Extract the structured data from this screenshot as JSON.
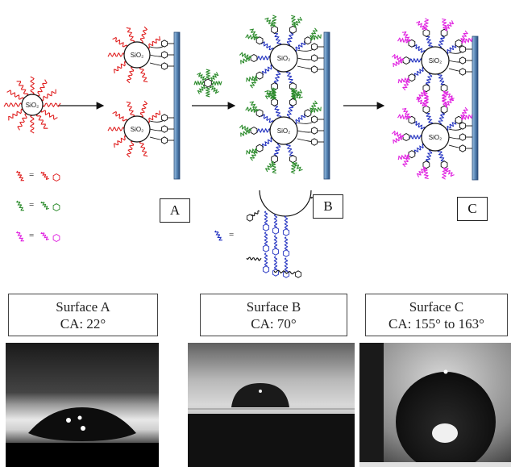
{
  "diagram": {
    "particle_label": "SiO₂",
    "panel_labels": [
      "A",
      "B",
      "C"
    ],
    "legend_equals": "=",
    "colors": {
      "red_chain": "#e02020",
      "green_chain": "#2a8a2a",
      "blue_chain": "#2030c0",
      "magenta_chain": "#e020e0",
      "substrate": "#3a6a9a"
    }
  },
  "surfaces": [
    {
      "name": "Surface A",
      "ca": "CA: 22°",
      "contact_angle_deg": 22
    },
    {
      "name": "Surface B",
      "ca": "CA: 70°",
      "contact_angle_deg": 70
    },
    {
      "name": "Surface C",
      "ca": "CA: 155° to 163°",
      "contact_angle_deg": 159
    }
  ]
}
